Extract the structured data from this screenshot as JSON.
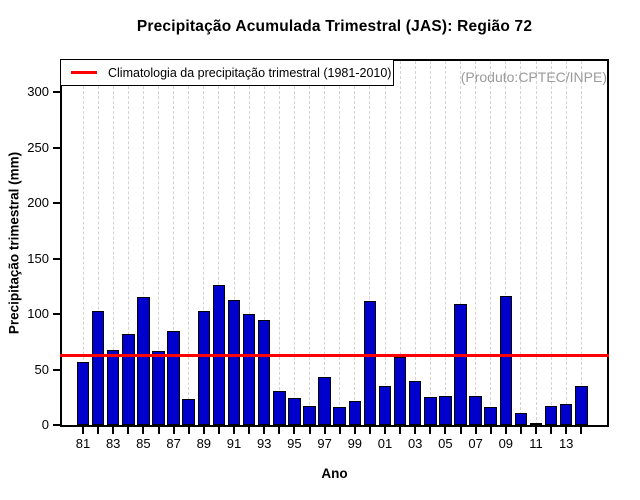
{
  "colors": {
    "bar_fill": "#0000CC",
    "bar_border": "#000000",
    "climatology_line": "#FF0000",
    "gridline": "#D3D3D3",
    "watermark_text": "#9B9B9B",
    "text": "#000000"
  },
  "chart_data": {
    "type": "bar",
    "title": "Precipitação Acumulada Trimestral (JAS): Região 72",
    "xlabel": "Ano",
    "ylabel": "Precipitação trimestral (mm)",
    "categories": [
      "81",
      "82",
      "83",
      "84",
      "85",
      "86",
      "87",
      "88",
      "89",
      "90",
      "91",
      "92",
      "93",
      "94",
      "95",
      "96",
      "97",
      "98",
      "99",
      "00",
      "01",
      "02",
      "03",
      "04",
      "05",
      "06",
      "07",
      "08",
      "09",
      "10",
      "11",
      "12",
      "13",
      "14"
    ],
    "values": [
      57,
      103,
      68,
      82,
      115,
      67,
      85,
      23,
      103,
      126,
      113,
      100,
      95,
      31,
      24,
      17,
      43,
      16,
      22,
      112,
      35,
      61,
      40,
      25,
      26,
      109,
      26,
      16,
      116,
      11,
      2,
      17,
      19,
      35
    ],
    "ylim": [
      0,
      328
    ],
    "yticks": [
      0,
      50,
      100,
      150,
      200,
      250,
      300
    ],
    "x_tick_labels": [
      "81",
      "83",
      "85",
      "87",
      "89",
      "91",
      "93",
      "95",
      "97",
      "99",
      "01",
      "03",
      "05",
      "07",
      "09",
      "11",
      "13"
    ],
    "climatology": {
      "label": "Climatologia da precipitação trimestral (1981-2010)",
      "value": 63
    },
    "legend_position": "top-left",
    "grid": "vertical-dashed",
    "annotations": [
      {
        "text": "(Produto:CPTEC/INPE)",
        "position": "top-right"
      }
    ]
  }
}
